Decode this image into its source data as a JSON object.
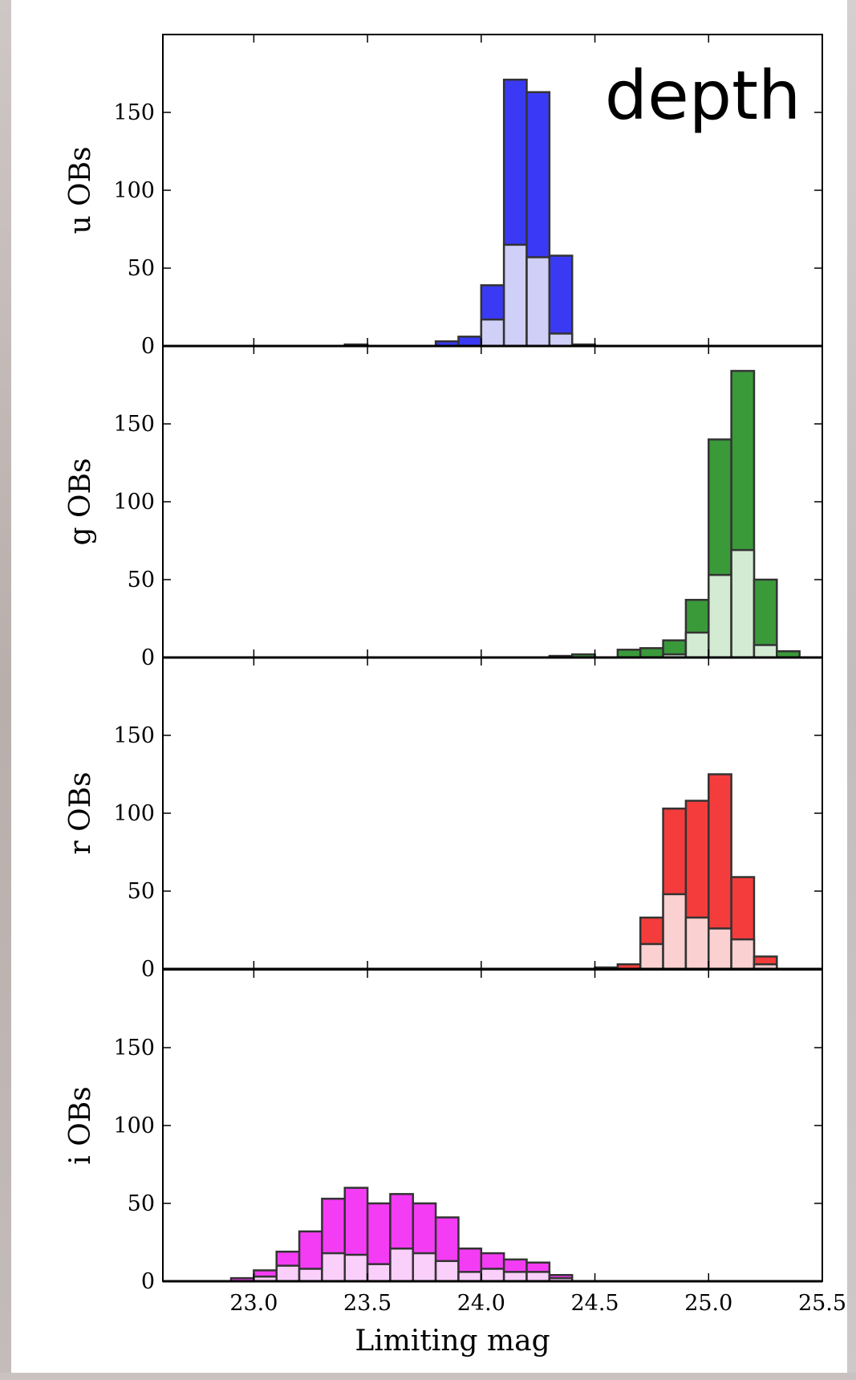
{
  "colors": {
    "border_left": "#bdb3b1",
    "border_right": "#c9c3c4",
    "u_full": "#3a3af5",
    "u_light": "#cfcff8",
    "g_full": "#3a9a3a",
    "g_light": "#d2ebd2",
    "r_full": "#f53c3c",
    "r_light": "#fad0d0",
    "i_full": "#f53cf5",
    "i_light": "#fad0fa",
    "bar_edge": "#333333"
  },
  "chart_data": {
    "type": "bar",
    "annotation": "depth",
    "xlabel": "Limiting mag",
    "xlim": [
      22.6,
      25.5
    ],
    "x_ticks": [
      "23.0",
      "23.5",
      "24.0",
      "24.5",
      "25.0",
      "25.5"
    ],
    "y_ticks": [
      "0",
      "50",
      "100",
      "150"
    ],
    "ylim": [
      0,
      200
    ],
    "bin_width": 0.1,
    "panels": [
      {
        "ylabel": "u OBs",
        "color_key": "u",
        "bins": [
          {
            "x0": 23.4,
            "total": 1,
            "subset": 0
          },
          {
            "x0": 23.8,
            "total": 3,
            "subset": 0
          },
          {
            "x0": 23.9,
            "total": 6,
            "subset": 0
          },
          {
            "x0": 24.0,
            "total": 39,
            "subset": 17
          },
          {
            "x0": 24.1,
            "total": 171,
            "subset": 65
          },
          {
            "x0": 24.2,
            "total": 163,
            "subset": 57
          },
          {
            "x0": 24.3,
            "total": 58,
            "subset": 8
          },
          {
            "x0": 24.4,
            "total": 1,
            "subset": 0
          }
        ]
      },
      {
        "ylabel": "g OBs",
        "color_key": "g",
        "bins": [
          {
            "x0": 24.3,
            "total": 1,
            "subset": 0
          },
          {
            "x0": 24.4,
            "total": 2,
            "subset": 0
          },
          {
            "x0": 24.6,
            "total": 5,
            "subset": 0
          },
          {
            "x0": 24.7,
            "total": 6,
            "subset": 0
          },
          {
            "x0": 24.8,
            "total": 11,
            "subset": 2
          },
          {
            "x0": 24.9,
            "total": 37,
            "subset": 16
          },
          {
            "x0": 25.0,
            "total": 140,
            "subset": 53
          },
          {
            "x0": 25.1,
            "total": 184,
            "subset": 69
          },
          {
            "x0": 25.2,
            "total": 50,
            "subset": 8
          },
          {
            "x0": 25.3,
            "total": 4,
            "subset": 0
          }
        ]
      },
      {
        "ylabel": "r OBs",
        "color_key": "r",
        "bins": [
          {
            "x0": 24.5,
            "total": 1,
            "subset": 0
          },
          {
            "x0": 24.6,
            "total": 3,
            "subset": 0
          },
          {
            "x0": 24.7,
            "total": 33,
            "subset": 16
          },
          {
            "x0": 24.8,
            "total": 103,
            "subset": 48
          },
          {
            "x0": 24.9,
            "total": 108,
            "subset": 33
          },
          {
            "x0": 25.0,
            "total": 125,
            "subset": 26
          },
          {
            "x0": 25.1,
            "total": 59,
            "subset": 19
          },
          {
            "x0": 25.2,
            "total": 8,
            "subset": 3
          }
        ]
      },
      {
        "ylabel": "i OBs",
        "color_key": "i",
        "bins": [
          {
            "x0": 22.9,
            "total": 2,
            "subset": 0
          },
          {
            "x0": 23.0,
            "total": 7,
            "subset": 3
          },
          {
            "x0": 23.1,
            "total": 19,
            "subset": 10
          },
          {
            "x0": 23.2,
            "total": 32,
            "subset": 8
          },
          {
            "x0": 23.3,
            "total": 53,
            "subset": 18
          },
          {
            "x0": 23.4,
            "total": 60,
            "subset": 17
          },
          {
            "x0": 23.5,
            "total": 50,
            "subset": 11
          },
          {
            "x0": 23.6,
            "total": 56,
            "subset": 21
          },
          {
            "x0": 23.7,
            "total": 50,
            "subset": 18
          },
          {
            "x0": 23.8,
            "total": 41,
            "subset": 13
          },
          {
            "x0": 23.9,
            "total": 21,
            "subset": 6
          },
          {
            "x0": 24.0,
            "total": 18,
            "subset": 8
          },
          {
            "x0": 24.1,
            "total": 14,
            "subset": 6
          },
          {
            "x0": 24.2,
            "total": 12,
            "subset": 6
          },
          {
            "x0": 24.3,
            "total": 4,
            "subset": 2
          }
        ]
      }
    ]
  }
}
